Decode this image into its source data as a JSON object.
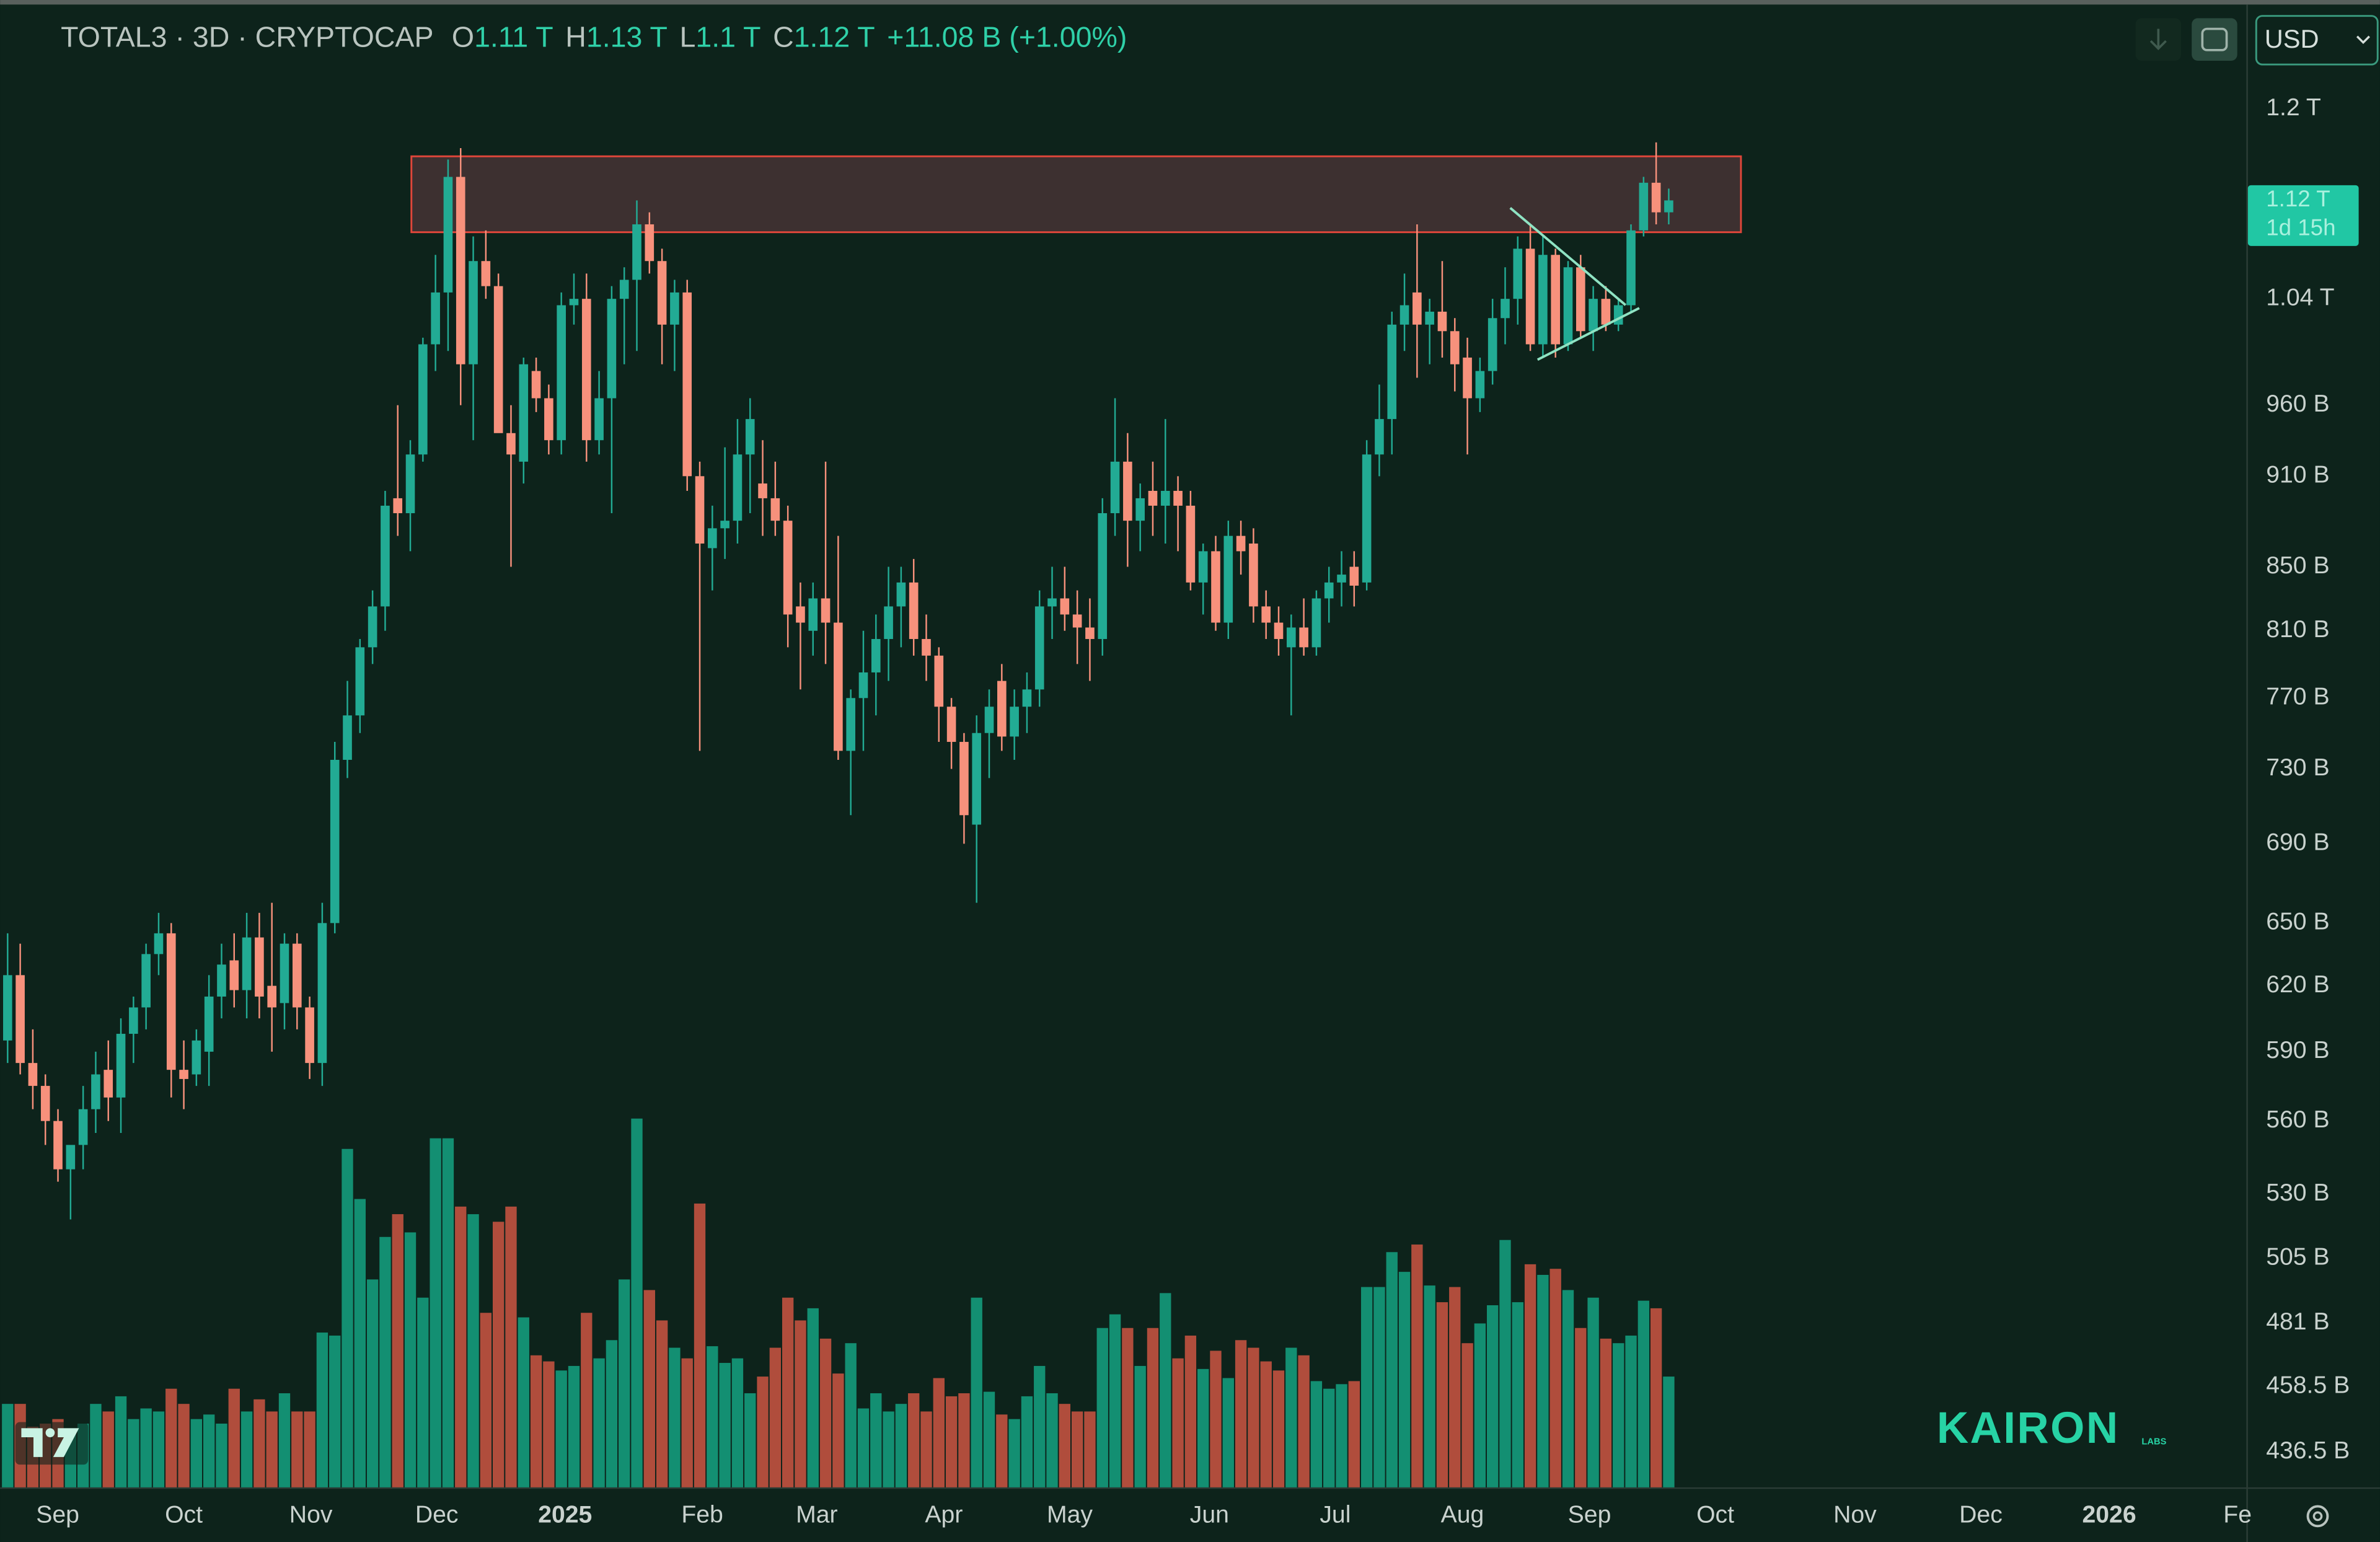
{
  "chart_data": {
    "type": "candlestick",
    "title": "TOTAL3 · 3D · CRYPTOCAP",
    "ohlc_header": [
      {
        "label": "O",
        "value": "1.11 T"
      },
      {
        "label": "H",
        "value": "1.13 T"
      },
      {
        "label": "L",
        "value": "1.1 T"
      },
      {
        "label": "C",
        "value": "1.12 T"
      }
    ],
    "change": "+11.08 B (+1.00%)",
    "currency": "USD",
    "last_price_label": "1.12 T",
    "countdown": "1d 15h",
    "watermark": "KAIRON",
    "watermark_sub": "LABS",
    "log_scale": true,
    "grid": false,
    "up_color": "#22ab94",
    "down_color": "#f7917c",
    "volume_up_color": "#138f72",
    "volume_down_color": "#b04d3c",
    "xlim": [
      -0.6,
      177.9
    ],
    "xticks": [
      {
        "value": 3.98,
        "label": "Sep"
      },
      {
        "value": 14.0,
        "label": "Oct"
      },
      {
        "value": 24.1,
        "label": "Nov"
      },
      {
        "value": 34.1,
        "label": "Dec"
      },
      {
        "value": 44.3,
        "label": "2025"
      },
      {
        "value": 55.2,
        "label": "Feb"
      },
      {
        "value": 64.3,
        "label": "Mar"
      },
      {
        "value": 74.4,
        "label": "Apr"
      },
      {
        "value": 84.4,
        "label": "May"
      },
      {
        "value": 95.5,
        "label": "Jun"
      },
      {
        "value": 105.5,
        "label": "Jul"
      },
      {
        "value": 115.6,
        "label": "Aug"
      },
      {
        "value": 125.7,
        "label": "Sep"
      },
      {
        "value": 135.7,
        "label": "Oct"
      },
      {
        "value": 146.8,
        "label": "Nov"
      },
      {
        "value": 156.8,
        "label": "Dec"
      },
      {
        "value": 167.0,
        "label": "2026"
      },
      {
        "value": 177.2,
        "label": "Fe"
      }
    ],
    "ylim": [
      425,
      1295
    ],
    "yticks": [
      {
        "value": 1200,
        "label": "1.2 T"
      },
      {
        "value": 1040,
        "label": "1.04 T"
      },
      {
        "value": 960,
        "label": "960 B"
      },
      {
        "value": 910,
        "label": "910 B"
      },
      {
        "value": 850,
        "label": "850 B"
      },
      {
        "value": 810,
        "label": "810 B"
      },
      {
        "value": 770,
        "label": "770 B"
      },
      {
        "value": 730,
        "label": "730 B"
      },
      {
        "value": 690,
        "label": "690 B"
      },
      {
        "value": 650,
        "label": "650 B"
      },
      {
        "value": 620,
        "label": "620 B"
      },
      {
        "value": 590,
        "label": "590 B"
      },
      {
        "value": 560,
        "label": "560 B"
      },
      {
        "value": 530,
        "label": "530 B"
      },
      {
        "value": 505,
        "label": "505 B"
      },
      {
        "value": 481,
        "label": "481 B"
      },
      {
        "value": 458.5,
        "label": "458.5 B"
      },
      {
        "value": 436.5,
        "label": "436.5 B"
      }
    ],
    "volume_lim": [
      0,
      975
    ],
    "candles": [
      [
        595,
        645,
        585,
        625
      ],
      [
        625,
        640,
        580,
        585
      ],
      [
        585,
        600,
        565,
        575
      ],
      [
        575,
        580,
        550,
        560
      ],
      [
        560,
        565,
        535,
        540
      ],
      [
        540,
        545,
        520,
        550
      ],
      [
        550,
        575,
        540,
        565
      ],
      [
        565,
        590,
        555,
        580
      ],
      [
        582,
        595,
        560,
        570
      ],
      [
        570,
        605,
        555,
        598
      ],
      [
        598,
        615,
        585,
        610
      ],
      [
        610,
        640,
        600,
        635
      ],
      [
        635,
        655,
        625,
        645
      ],
      [
        645,
        650,
        570,
        582
      ],
      [
        582,
        595,
        565,
        578
      ],
      [
        580,
        600,
        575,
        595
      ],
      [
        590,
        625,
        575,
        615
      ],
      [
        615,
        640,
        605,
        630
      ],
      [
        632,
        645,
        610,
        618
      ],
      [
        618,
        655,
        605,
        643
      ],
      [
        643,
        655,
        605,
        615
      ],
      [
        620,
        660,
        590,
        610
      ],
      [
        612,
        645,
        600,
        640
      ],
      [
        640,
        645,
        600,
        610
      ],
      [
        610,
        615,
        578,
        585
      ],
      [
        585,
        660,
        575,
        650
      ],
      [
        650,
        745,
        645,
        735
      ],
      [
        735,
        780,
        725,
        760
      ],
      [
        760,
        805,
        750,
        800
      ],
      [
        800,
        835,
        790,
        825
      ],
      [
        825,
        900,
        810,
        890
      ],
      [
        895,
        960,
        870,
        885
      ],
      [
        885,
        935,
        860,
        925
      ],
      [
        925,
        1010,
        920,
        1005
      ],
      [
        1005,
        1075,
        985,
        1045
      ],
      [
        1045,
        1155,
        1000,
        1140
      ],
      [
        1140,
        1165,
        960,
        990
      ],
      [
        990,
        1090,
        935,
        1070
      ],
      [
        1070,
        1095,
        1040,
        1050
      ],
      [
        1050,
        1060,
        945,
        940
      ],
      [
        940,
        960,
        850,
        925
      ],
      [
        920,
        995,
        905,
        990
      ],
      [
        985,
        995,
        955,
        965
      ],
      [
        965,
        975,
        925,
        935
      ],
      [
        935,
        1045,
        925,
        1035
      ],
      [
        1035,
        1060,
        1020,
        1040
      ],
      [
        1040,
        1060,
        920,
        935
      ],
      [
        935,
        985,
        925,
        965
      ],
      [
        965,
        1050,
        885,
        1040
      ],
      [
        1040,
        1065,
        990,
        1055
      ],
      [
        1055,
        1120,
        1000,
        1100
      ],
      [
        1100,
        1110,
        1060,
        1070
      ],
      [
        1070,
        1080,
        990,
        1020
      ],
      [
        1020,
        1055,
        985,
        1045
      ],
      [
        1045,
        1055,
        900,
        910
      ],
      [
        910,
        920,
        740,
        865
      ],
      [
        862,
        890,
        835,
        875
      ],
      [
        875,
        930,
        855,
        880
      ],
      [
        880,
        950,
        865,
        925
      ],
      [
        925,
        965,
        885,
        950
      ],
      [
        905,
        935,
        870,
        895
      ],
      [
        895,
        920,
        870,
        880
      ],
      [
        880,
        890,
        800,
        820
      ],
      [
        825,
        840,
        775,
        815
      ],
      [
        810,
        840,
        795,
        830
      ],
      [
        830,
        920,
        790,
        815
      ],
      [
        815,
        870,
        735,
        740
      ],
      [
        740,
        775,
        705,
        770
      ],
      [
        770,
        810,
        740,
        785
      ],
      [
        785,
        820,
        760,
        805
      ],
      [
        805,
        850,
        780,
        825
      ],
      [
        825,
        850,
        800,
        840
      ],
      [
        840,
        855,
        795,
        805
      ],
      [
        805,
        820,
        780,
        795
      ],
      [
        795,
        800,
        745,
        765
      ],
      [
        765,
        770,
        730,
        745
      ],
      [
        745,
        750,
        690,
        705
      ],
      [
        700,
        760,
        660,
        750
      ],
      [
        750,
        775,
        725,
        765
      ],
      [
        780,
        790,
        740,
        748
      ],
      [
        748,
        775,
        735,
        765
      ],
      [
        765,
        785,
        750,
        775
      ],
      [
        775,
        835,
        765,
        825
      ],
      [
        825,
        850,
        805,
        830
      ],
      [
        830,
        850,
        810,
        820
      ],
      [
        820,
        835,
        790,
        812
      ],
      [
        812,
        830,
        780,
        805
      ],
      [
        805,
        895,
        795,
        885
      ],
      [
        885,
        965,
        870,
        920
      ],
      [
        920,
        940,
        850,
        880
      ],
      [
        880,
        905,
        860,
        895
      ],
      [
        900,
        920,
        870,
        890
      ],
      [
        890,
        950,
        865,
        900
      ],
      [
        900,
        910,
        860,
        890
      ],
      [
        890,
        900,
        835,
        840
      ],
      [
        840,
        865,
        820,
        860
      ],
      [
        860,
        870,
        810,
        815
      ],
      [
        815,
        880,
        805,
        870
      ],
      [
        870,
        880,
        845,
        860
      ],
      [
        865,
        875,
        815,
        825
      ],
      [
        825,
        835,
        805,
        815
      ],
      [
        815,
        825,
        795,
        805
      ],
      [
        800,
        820,
        760,
        812
      ],
      [
        812,
        830,
        795,
        800
      ],
      [
        800,
        835,
        795,
        830
      ],
      [
        830,
        850,
        815,
        840
      ],
      [
        840,
        860,
        825,
        845
      ],
      [
        850,
        860,
        825,
        838
      ],
      [
        840,
        935,
        835,
        925
      ],
      [
        925,
        975,
        910,
        950
      ],
      [
        950,
        1030,
        925,
        1020
      ],
      [
        1020,
        1060,
        1000,
        1035
      ],
      [
        1045,
        1100,
        980,
        1020
      ],
      [
        1020,
        1040,
        990,
        1030
      ],
      [
        1030,
        1070,
        995,
        1015
      ],
      [
        1015,
        1025,
        970,
        990
      ],
      [
        995,
        1010,
        925,
        965
      ],
      [
        965,
        995,
        955,
        985
      ],
      [
        985,
        1040,
        975,
        1025
      ],
      [
        1025,
        1065,
        1005,
        1040
      ],
      [
        1040,
        1090,
        1020,
        1080
      ],
      [
        1080,
        1100,
        1000,
        1005
      ],
      [
        1005,
        1090,
        995,
        1075
      ],
      [
        1075,
        1080,
        995,
        1005
      ],
      [
        1005,
        1070,
        1000,
        1065
      ],
      [
        1065,
        1075,
        1010,
        1015
      ],
      [
        1015,
        1050,
        1000,
        1040
      ],
      [
        1040,
        1050,
        1015,
        1020
      ],
      [
        1020,
        1040,
        1015,
        1035
      ],
      [
        1035,
        1100,
        1030,
        1095
      ],
      [
        1095,
        1140,
        1090,
        1135
      ],
      [
        1135,
        1170,
        1100,
        1110
      ],
      [
        1110,
        1130,
        1100,
        1120
      ]
    ],
    "volume": [
      55,
      55,
      40,
      42,
      45,
      35,
      42,
      55,
      50,
      60,
      45,
      52,
      50,
      65,
      55,
      45,
      48,
      42,
      65,
      50,
      58,
      50,
      62,
      50,
      50,
      102,
      100,
      223,
      190,
      137,
      165,
      180,
      168,
      125,
      230,
      230,
      185,
      180,
      115,
      175,
      185,
      112,
      87,
      83,
      77,
      80,
      115,
      85,
      97,
      137,
      243,
      130,
      110,
      92,
      85,
      187,
      93,
      82,
      85,
      62,
      73,
      92,
      125,
      110,
      118,
      98,
      75,
      95,
      52,
      62,
      50,
      55,
      62,
      50,
      72,
      60,
      62,
      125,
      63,
      48,
      45,
      60,
      80,
      62,
      55,
      50,
      50,
      105,
      114,
      105,
      80,
      105,
      128,
      85,
      100,
      78,
      90,
      72,
      97,
      92,
      83,
      77,
      92,
      87,
      70,
      65,
      68,
      70,
      132,
      132,
      155,
      142,
      160,
      133,
      122,
      132,
      95,
      108,
      120,
      163,
      122,
      147,
      140,
      144,
      130,
      105,
      125,
      98,
      95,
      100,
      123,
      118,
      73
    ]
  }
}
